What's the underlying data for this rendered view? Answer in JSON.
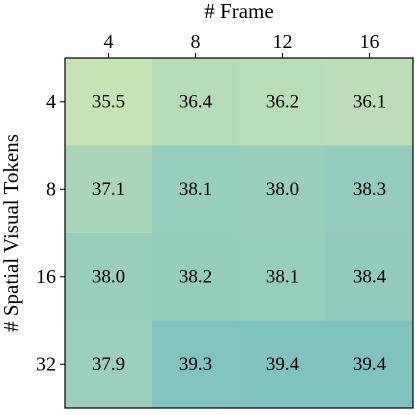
{
  "chart_data": {
    "type": "heatmap",
    "title": "",
    "xlabel": "# Frame",
    "ylabel": "# Spatial Visual Tokens",
    "x_categories": [
      "4",
      "8",
      "12",
      "16"
    ],
    "y_categories": [
      "4",
      "8",
      "16",
      "32"
    ],
    "x_axis_position": "top",
    "values": [
      [
        35.5,
        36.4,
        36.2,
        36.1
      ],
      [
        37.1,
        38.1,
        38.0,
        38.3
      ],
      [
        38.0,
        38.2,
        38.1,
        38.4
      ],
      [
        37.9,
        39.3,
        39.4,
        39.4
      ]
    ],
    "value_labels": [
      [
        "35.5",
        "36.4",
        "36.2",
        "36.1"
      ],
      [
        "37.1",
        "38.1",
        "38.0",
        "38.3"
      ],
      [
        "38.0",
        "38.2",
        "38.1",
        "38.4"
      ],
      [
        "37.9",
        "39.3",
        "39.4",
        "39.4"
      ]
    ],
    "value_range": [
      35.5,
      39.4
    ],
    "colormap": {
      "low_color": "#c6e3b4",
      "high_color": "#80c2c0"
    },
    "grid": false,
    "legend": "none"
  }
}
